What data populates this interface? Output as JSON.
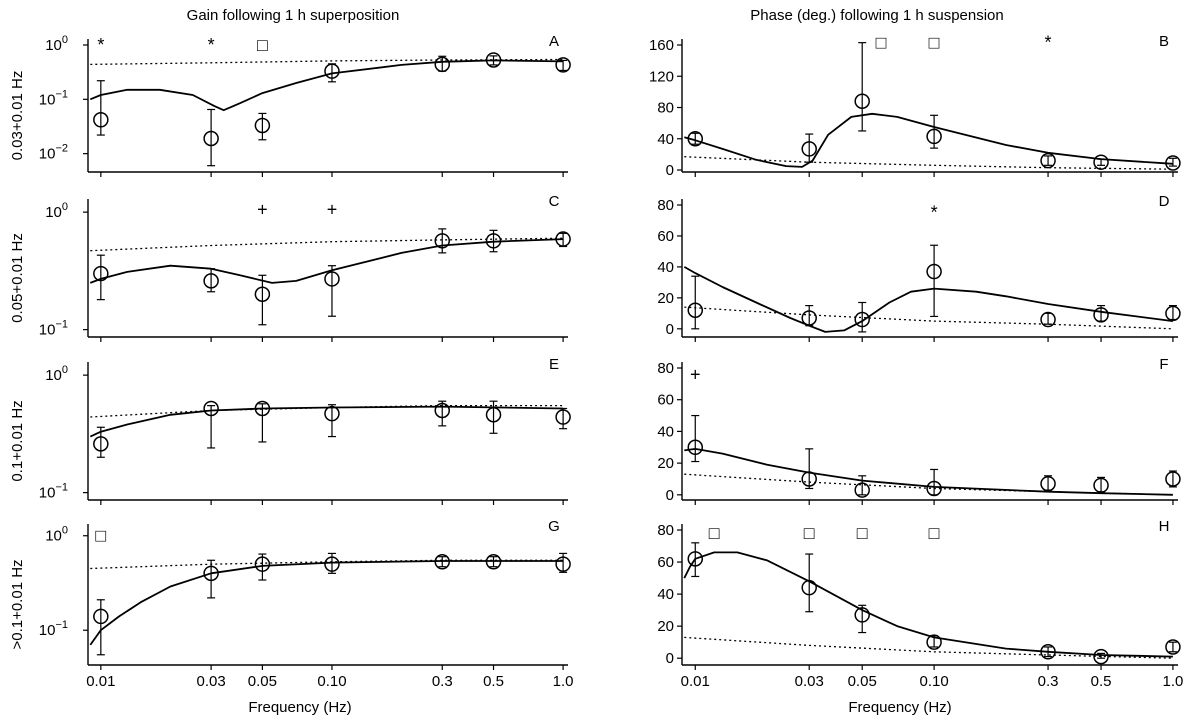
{
  "figure": {
    "left_title": "Gain following 1 h superposition",
    "right_title": "Phase (deg.) following 1 h suspension",
    "xlabel": "Frequency (Hz)"
  },
  "chart_data": [
    {
      "id": "A",
      "type": "scatter",
      "column": "gain",
      "ylabel": "0.03+0.01 Hz",
      "yscale": "log",
      "ylim": [
        0.005,
        1.0
      ],
      "yticks": [
        {
          "v": 0.01,
          "m": "10",
          "e": "−2"
        },
        {
          "v": 0.1,
          "m": "10",
          "e": "−1"
        },
        {
          "v": 1,
          "m": "10",
          "e": "0"
        }
      ],
      "xticks": [
        "0.01",
        "0.03",
        "0.05",
        "0.10",
        "0.3",
        "0.5",
        "1.0"
      ],
      "points": [
        {
          "x": 0.01,
          "y": 0.042,
          "lo": 0.022,
          "hi": 0.22
        },
        {
          "x": 0.03,
          "y": 0.019,
          "lo": 0.006,
          "hi": 0.065
        },
        {
          "x": 0.05,
          "y": 0.033,
          "lo": 0.018,
          "hi": 0.055
        },
        {
          "x": 0.1,
          "y": 0.33,
          "lo": 0.21,
          "hi": 0.45
        },
        {
          "x": 0.3,
          "y": 0.44,
          "lo": 0.33,
          "hi": 0.62
        },
        {
          "x": 0.5,
          "y": 0.53,
          "lo": 0.43,
          "hi": 0.63
        },
        {
          "x": 1.0,
          "y": 0.43,
          "lo": 0.34,
          "hi": 0.52
        }
      ],
      "fit": [
        [
          0.009,
          0.1
        ],
        [
          0.01,
          0.12
        ],
        [
          0.013,
          0.15
        ],
        [
          0.018,
          0.15
        ],
        [
          0.025,
          0.12
        ],
        [
          0.031,
          0.075
        ],
        [
          0.034,
          0.063
        ],
        [
          0.04,
          0.085
        ],
        [
          0.05,
          0.13
        ],
        [
          0.07,
          0.2
        ],
        [
          0.1,
          0.3
        ],
        [
          0.2,
          0.43
        ],
        [
          0.3,
          0.49
        ],
        [
          0.5,
          0.52
        ],
        [
          1.0,
          0.5
        ]
      ],
      "model": [
        [
          0.009,
          0.44
        ],
        [
          0.03,
          0.47
        ],
        [
          0.1,
          0.51
        ],
        [
          0.3,
          0.53
        ],
        [
          1.0,
          0.54
        ]
      ],
      "markers": [
        {
          "x": 0.01,
          "y": 1.0,
          "symbol": "*"
        },
        {
          "x": 0.03,
          "y": 1.0,
          "symbol": "*"
        },
        {
          "x": 0.05,
          "y": 1.0,
          "symbol": "□"
        }
      ]
    },
    {
      "id": "B",
      "type": "scatter",
      "column": "phase",
      "ylabel": "",
      "yscale": "linear",
      "ylim": [
        0,
        160
      ],
      "yticks": [
        {
          "v": 0,
          "t": "0"
        },
        {
          "v": 40,
          "t": "40"
        },
        {
          "v": 80,
          "t": "80"
        },
        {
          "v": 120,
          "t": "120"
        },
        {
          "v": 160,
          "t": "160"
        }
      ],
      "xticks": [
        "0.01",
        "0.03",
        "0.05",
        "0.10",
        "0.3",
        "0.5",
        "1.0"
      ],
      "points": [
        {
          "x": 0.01,
          "y": 40,
          "lo": 33,
          "hi": 47
        },
        {
          "x": 0.03,
          "y": 27,
          "lo": 10,
          "hi": 46
        },
        {
          "x": 0.05,
          "y": 88,
          "lo": 50,
          "hi": 163
        },
        {
          "x": 0.1,
          "y": 43,
          "lo": 28,
          "hi": 70
        },
        {
          "x": 0.3,
          "y": 12,
          "lo": 6,
          "hi": 18
        },
        {
          "x": 0.5,
          "y": 10,
          "lo": 6,
          "hi": 14
        },
        {
          "x": 1.0,
          "y": 9,
          "lo": 5,
          "hi": 15
        }
      ],
      "fit": [
        [
          0.009,
          42
        ],
        [
          0.01,
          38
        ],
        [
          0.013,
          27
        ],
        [
          0.018,
          13
        ],
        [
          0.024,
          5
        ],
        [
          0.028,
          4
        ],
        [
          0.031,
          12
        ],
        [
          0.036,
          45
        ],
        [
          0.045,
          68
        ],
        [
          0.055,
          72
        ],
        [
          0.07,
          68
        ],
        [
          0.1,
          55
        ],
        [
          0.2,
          32
        ],
        [
          0.3,
          22
        ],
        [
          0.5,
          14
        ],
        [
          1.0,
          8
        ]
      ],
      "model": [
        [
          0.009,
          17
        ],
        [
          0.03,
          10
        ],
        [
          0.1,
          6
        ],
        [
          0.3,
          3
        ],
        [
          1.0,
          1
        ]
      ],
      "markers": [
        {
          "x": 0.06,
          "y": 163,
          "symbol": "□"
        },
        {
          "x": 0.1,
          "y": 163,
          "symbol": "□"
        },
        {
          "x": 0.3,
          "y": 163,
          "symbol": "*"
        }
      ]
    },
    {
      "id": "C",
      "type": "scatter",
      "column": "gain",
      "ylabel": "0.05+0.01 Hz",
      "yscale": "log",
      "ylim": [
        0.09,
        1.15
      ],
      "yticks": [
        {
          "v": 0.1,
          "m": "10",
          "e": "−1"
        },
        {
          "v": 1,
          "m": "10",
          "e": "0"
        }
      ],
      "xticks": [
        "0.01",
        "0.03",
        "0.05",
        "0.10",
        "0.3",
        "0.5",
        "1.0"
      ],
      "points": [
        {
          "x": 0.01,
          "y": 0.3,
          "lo": 0.18,
          "hi": 0.43
        },
        {
          "x": 0.03,
          "y": 0.26,
          "lo": 0.21,
          "hi": 0.33
        },
        {
          "x": 0.05,
          "y": 0.2,
          "lo": 0.11,
          "hi": 0.29
        },
        {
          "x": 0.1,
          "y": 0.27,
          "lo": 0.13,
          "hi": 0.35
        },
        {
          "x": 0.3,
          "y": 0.57,
          "lo": 0.45,
          "hi": 0.72
        },
        {
          "x": 0.5,
          "y": 0.57,
          "lo": 0.46,
          "hi": 0.7
        },
        {
          "x": 1.0,
          "y": 0.59,
          "lo": 0.51,
          "hi": 0.66
        }
      ],
      "fit": [
        [
          0.009,
          0.25
        ],
        [
          0.01,
          0.27
        ],
        [
          0.013,
          0.31
        ],
        [
          0.02,
          0.35
        ],
        [
          0.03,
          0.33
        ],
        [
          0.04,
          0.29
        ],
        [
          0.055,
          0.25
        ],
        [
          0.07,
          0.26
        ],
        [
          0.1,
          0.32
        ],
        [
          0.2,
          0.45
        ],
        [
          0.3,
          0.52
        ],
        [
          0.5,
          0.56
        ],
        [
          1.0,
          0.59
        ]
      ],
      "model": [
        [
          0.009,
          0.47
        ],
        [
          0.03,
          0.52
        ],
        [
          0.1,
          0.56
        ],
        [
          0.3,
          0.58
        ],
        [
          1.0,
          0.6
        ]
      ],
      "markers": [
        {
          "x": 0.05,
          "y": 1.05,
          "symbol": "+"
        },
        {
          "x": 0.1,
          "y": 1.05,
          "symbol": "+"
        }
      ]
    },
    {
      "id": "D",
      "type": "scatter",
      "column": "phase",
      "ylabel": "",
      "yscale": "linear",
      "ylim": [
        -4,
        80
      ],
      "yticks": [
        {
          "v": 0,
          "t": "0"
        },
        {
          "v": 20,
          "t": "20"
        },
        {
          "v": 40,
          "t": "40"
        },
        {
          "v": 60,
          "t": "60"
        },
        {
          "v": 80,
          "t": "80"
        }
      ],
      "xticks": [
        "0.01",
        "0.03",
        "0.05",
        "0.10",
        "0.3",
        "0.5",
        "1.0"
      ],
      "points": [
        {
          "x": 0.01,
          "y": 12,
          "lo": 0,
          "hi": 34
        },
        {
          "x": 0.03,
          "y": 7,
          "lo": 2,
          "hi": 15
        },
        {
          "x": 0.05,
          "y": 6,
          "lo": -2,
          "hi": 17
        },
        {
          "x": 0.1,
          "y": 37,
          "lo": 8,
          "hi": 54
        },
        {
          "x": 0.3,
          "y": 6,
          "lo": 3,
          "hi": 10
        },
        {
          "x": 0.5,
          "y": 9,
          "lo": 5,
          "hi": 15
        },
        {
          "x": 1.0,
          "y": 10,
          "lo": 6,
          "hi": 15
        }
      ],
      "fit": [
        [
          0.009,
          40
        ],
        [
          0.01,
          36
        ],
        [
          0.013,
          27
        ],
        [
          0.018,
          17
        ],
        [
          0.025,
          7
        ],
        [
          0.03,
          2
        ],
        [
          0.035,
          -2
        ],
        [
          0.042,
          -1
        ],
        [
          0.05,
          5
        ],
        [
          0.065,
          17
        ],
        [
          0.08,
          24
        ],
        [
          0.1,
          26
        ],
        [
          0.15,
          24
        ],
        [
          0.2,
          21
        ],
        [
          0.3,
          16
        ],
        [
          0.5,
          11
        ],
        [
          1.0,
          5
        ]
      ],
      "model": [
        [
          0.009,
          14
        ],
        [
          0.03,
          9
        ],
        [
          0.1,
          5
        ],
        [
          0.3,
          3
        ],
        [
          1.0,
          0
        ]
      ],
      "markers": [
        {
          "x": 0.1,
          "y": 75,
          "symbol": "*"
        }
      ]
    },
    {
      "id": "E",
      "type": "scatter",
      "column": "gain",
      "ylabel": "0.1+0.01 Hz",
      "yscale": "log",
      "ylim": [
        0.09,
        1.15
      ],
      "yticks": [
        {
          "v": 0.1,
          "m": "10",
          "e": "−1"
        },
        {
          "v": 1,
          "m": "10",
          "e": "0"
        }
      ],
      "xticks": [
        "0.01",
        "0.03",
        "0.05",
        "0.10",
        "0.3",
        "0.5",
        "1.0"
      ],
      "points": [
        {
          "x": 0.01,
          "y": 0.26,
          "lo": 0.2,
          "hi": 0.36
        },
        {
          "x": 0.03,
          "y": 0.52,
          "lo": 0.24,
          "hi": 0.55
        },
        {
          "x": 0.05,
          "y": 0.52,
          "lo": 0.27,
          "hi": 0.57
        },
        {
          "x": 0.1,
          "y": 0.47,
          "lo": 0.3,
          "hi": 0.56
        },
        {
          "x": 0.3,
          "y": 0.5,
          "lo": 0.37,
          "hi": 0.6
        },
        {
          "x": 0.5,
          "y": 0.46,
          "lo": 0.32,
          "hi": 0.6
        },
        {
          "x": 1.0,
          "y": 0.44,
          "lo": 0.35,
          "hi": 0.52
        }
      ],
      "fit": [
        [
          0.009,
          0.3
        ],
        [
          0.01,
          0.33
        ],
        [
          0.013,
          0.38
        ],
        [
          0.02,
          0.46
        ],
        [
          0.03,
          0.5
        ],
        [
          0.05,
          0.52
        ],
        [
          0.1,
          0.53
        ],
        [
          0.3,
          0.54
        ],
        [
          1.0,
          0.52
        ]
      ],
      "model": [
        [
          0.009,
          0.44
        ],
        [
          0.03,
          0.5
        ],
        [
          0.1,
          0.53
        ],
        [
          0.3,
          0.55
        ],
        [
          1.0,
          0.55
        ]
      ],
      "markers": []
    },
    {
      "id": "F",
      "type": "scatter",
      "column": "phase",
      "ylabel": "",
      "yscale": "linear",
      "ylim": [
        -2,
        80
      ],
      "yticks": [
        {
          "v": 0,
          "t": "0"
        },
        {
          "v": 20,
          "t": "20"
        },
        {
          "v": 40,
          "t": "40"
        },
        {
          "v": 60,
          "t": "60"
        },
        {
          "v": 80,
          "t": "80"
        }
      ],
      "xticks": [
        "0.01",
        "0.03",
        "0.05",
        "0.10",
        "0.3",
        "0.5",
        "1.0"
      ],
      "points": [
        {
          "x": 0.01,
          "y": 30,
          "lo": 21,
          "hi": 50
        },
        {
          "x": 0.03,
          "y": 10,
          "lo": 4,
          "hi": 29
        },
        {
          "x": 0.05,
          "y": 3,
          "lo": 0,
          "hi": 12
        },
        {
          "x": 0.1,
          "y": 4,
          "lo": 0,
          "hi": 16
        },
        {
          "x": 0.3,
          "y": 7,
          "lo": 3,
          "hi": 12
        },
        {
          "x": 0.5,
          "y": 6,
          "lo": 2,
          "hi": 11
        },
        {
          "x": 1.0,
          "y": 10,
          "lo": 5,
          "hi": 15
        }
      ],
      "fit": [
        [
          0.009,
          28
        ],
        [
          0.01,
          29
        ],
        [
          0.013,
          26
        ],
        [
          0.02,
          19
        ],
        [
          0.03,
          14
        ],
        [
          0.05,
          9
        ],
        [
          0.1,
          5
        ],
        [
          0.3,
          2
        ],
        [
          0.5,
          1
        ],
        [
          1.0,
          0
        ]
      ],
      "model": [
        [
          0.009,
          13
        ],
        [
          0.03,
          8
        ],
        [
          0.1,
          4
        ],
        [
          0.3,
          2
        ],
        [
          1.0,
          0
        ]
      ],
      "markers": [
        {
          "x": 0.01,
          "y": 76,
          "symbol": "+"
        }
      ]
    },
    {
      "id": "G",
      "type": "scatter",
      "column": "gain",
      "ylabel": ">0.1+0.01 Hz",
      "yscale": "log",
      "ylim": [
        0.045,
        1.15
      ],
      "yticks": [
        {
          "v": 0.1,
          "m": "10",
          "e": "−1"
        },
        {
          "v": 1,
          "m": "10",
          "e": "0"
        }
      ],
      "xticks": [
        "0.01",
        "0.03",
        "0.05",
        "0.10",
        "0.3",
        "0.5",
        "1.0"
      ],
      "points": [
        {
          "x": 0.01,
          "y": 0.14,
          "lo": 0.055,
          "hi": 0.21
        },
        {
          "x": 0.03,
          "y": 0.4,
          "lo": 0.22,
          "hi": 0.55
        },
        {
          "x": 0.05,
          "y": 0.5,
          "lo": 0.34,
          "hi": 0.64
        },
        {
          "x": 0.1,
          "y": 0.5,
          "lo": 0.4,
          "hi": 0.65
        },
        {
          "x": 0.3,
          "y": 0.53,
          "lo": 0.47,
          "hi": 0.6
        },
        {
          "x": 0.5,
          "y": 0.53,
          "lo": 0.47,
          "hi": 0.6
        },
        {
          "x": 1.0,
          "y": 0.5,
          "lo": 0.41,
          "hi": 0.65
        }
      ],
      "fit": [
        [
          0.009,
          0.07
        ],
        [
          0.01,
          0.1
        ],
        [
          0.012,
          0.14
        ],
        [
          0.015,
          0.2
        ],
        [
          0.02,
          0.29
        ],
        [
          0.03,
          0.4
        ],
        [
          0.05,
          0.48
        ],
        [
          0.1,
          0.52
        ],
        [
          0.3,
          0.54
        ],
        [
          1.0,
          0.54
        ]
      ],
      "model": [
        [
          0.009,
          0.45
        ],
        [
          0.03,
          0.5
        ],
        [
          0.1,
          0.53
        ],
        [
          0.3,
          0.55
        ],
        [
          1.0,
          0.55
        ]
      ],
      "markers": [
        {
          "x": 0.01,
          "y": 1.0,
          "symbol": "□"
        }
      ]
    },
    {
      "id": "H",
      "type": "scatter",
      "column": "phase",
      "ylabel": "",
      "yscale": "linear",
      "ylim": [
        -3,
        80
      ],
      "yticks": [
        {
          "v": 0,
          "t": "0"
        },
        {
          "v": 20,
          "t": "20"
        },
        {
          "v": 40,
          "t": "40"
        },
        {
          "v": 60,
          "t": "60"
        },
        {
          "v": 80,
          "t": "80"
        }
      ],
      "xticks": [
        "0.01",
        "0.03",
        "0.05",
        "0.10",
        "0.3",
        "0.5",
        "1.0"
      ],
      "points": [
        {
          "x": 0.01,
          "y": 62,
          "lo": 51,
          "hi": 72
        },
        {
          "x": 0.03,
          "y": 44,
          "lo": 29,
          "hi": 65
        },
        {
          "x": 0.05,
          "y": 27,
          "lo": 16,
          "hi": 33
        },
        {
          "x": 0.1,
          "y": 10,
          "lo": 7,
          "hi": 14
        },
        {
          "x": 0.3,
          "y": 4,
          "lo": 1,
          "hi": 7
        },
        {
          "x": 0.5,
          "y": 1,
          "lo": 0,
          "hi": 3
        },
        {
          "x": 1.0,
          "y": 7,
          "lo": 4,
          "hi": 10
        }
      ],
      "fit": [
        [
          0.009,
          50
        ],
        [
          0.0095,
          57
        ],
        [
          0.01,
          62
        ],
        [
          0.012,
          66
        ],
        [
          0.015,
          66
        ],
        [
          0.02,
          61
        ],
        [
          0.03,
          48
        ],
        [
          0.05,
          30
        ],
        [
          0.07,
          20
        ],
        [
          0.1,
          13
        ],
        [
          0.2,
          6
        ],
        [
          0.3,
          4
        ],
        [
          0.5,
          2
        ],
        [
          1.0,
          1
        ]
      ],
      "model": [
        [
          0.009,
          13
        ],
        [
          0.03,
          8
        ],
        [
          0.1,
          4
        ],
        [
          0.3,
          2
        ],
        [
          1.0,
          0
        ]
      ],
      "markers": [
        {
          "x": 0.012,
          "y": 78,
          "symbol": "□"
        },
        {
          "x": 0.03,
          "y": 78,
          "symbol": "□"
        },
        {
          "x": 0.05,
          "y": 78,
          "symbol": "□"
        },
        {
          "x": 0.1,
          "y": 78,
          "symbol": "□"
        }
      ]
    }
  ]
}
